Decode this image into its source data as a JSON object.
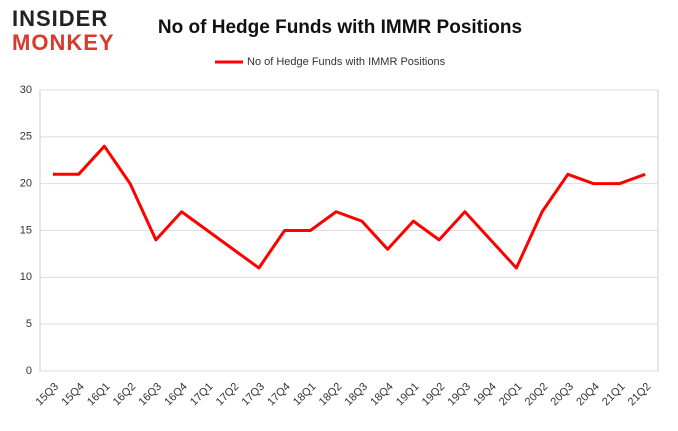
{
  "logo": {
    "line1": "INSIDER",
    "line2": "MONKEY"
  },
  "chart_data": {
    "type": "line",
    "title": "No of Hedge Funds with IMMR Positions",
    "categories": [
      "15Q3",
      "15Q4",
      "16Q1",
      "16Q2",
      "16Q3",
      "16Q4",
      "17Q1",
      "17Q2",
      "17Q3",
      "17Q4",
      "18Q1",
      "18Q2",
      "18Q3",
      "18Q4",
      "19Q1",
      "19Q2",
      "19Q3",
      "19Q4",
      "20Q1",
      "20Q2",
      "20Q3",
      "20Q4",
      "21Q1",
      "21Q2"
    ],
    "series": [
      {
        "name": "No of Hedge Funds with IMMR Positions",
        "color": "#ff0000",
        "values": [
          21,
          21,
          24,
          20,
          14,
          17,
          15,
          13,
          11,
          15,
          15,
          17,
          16,
          13,
          16,
          14,
          17,
          14,
          11,
          17,
          21,
          20,
          20,
          21
        ]
      }
    ],
    "ylim": [
      0,
      30
    ],
    "yticks": [
      0,
      5,
      10,
      15,
      20,
      25,
      30
    ],
    "grid": true,
    "legend": "top"
  }
}
